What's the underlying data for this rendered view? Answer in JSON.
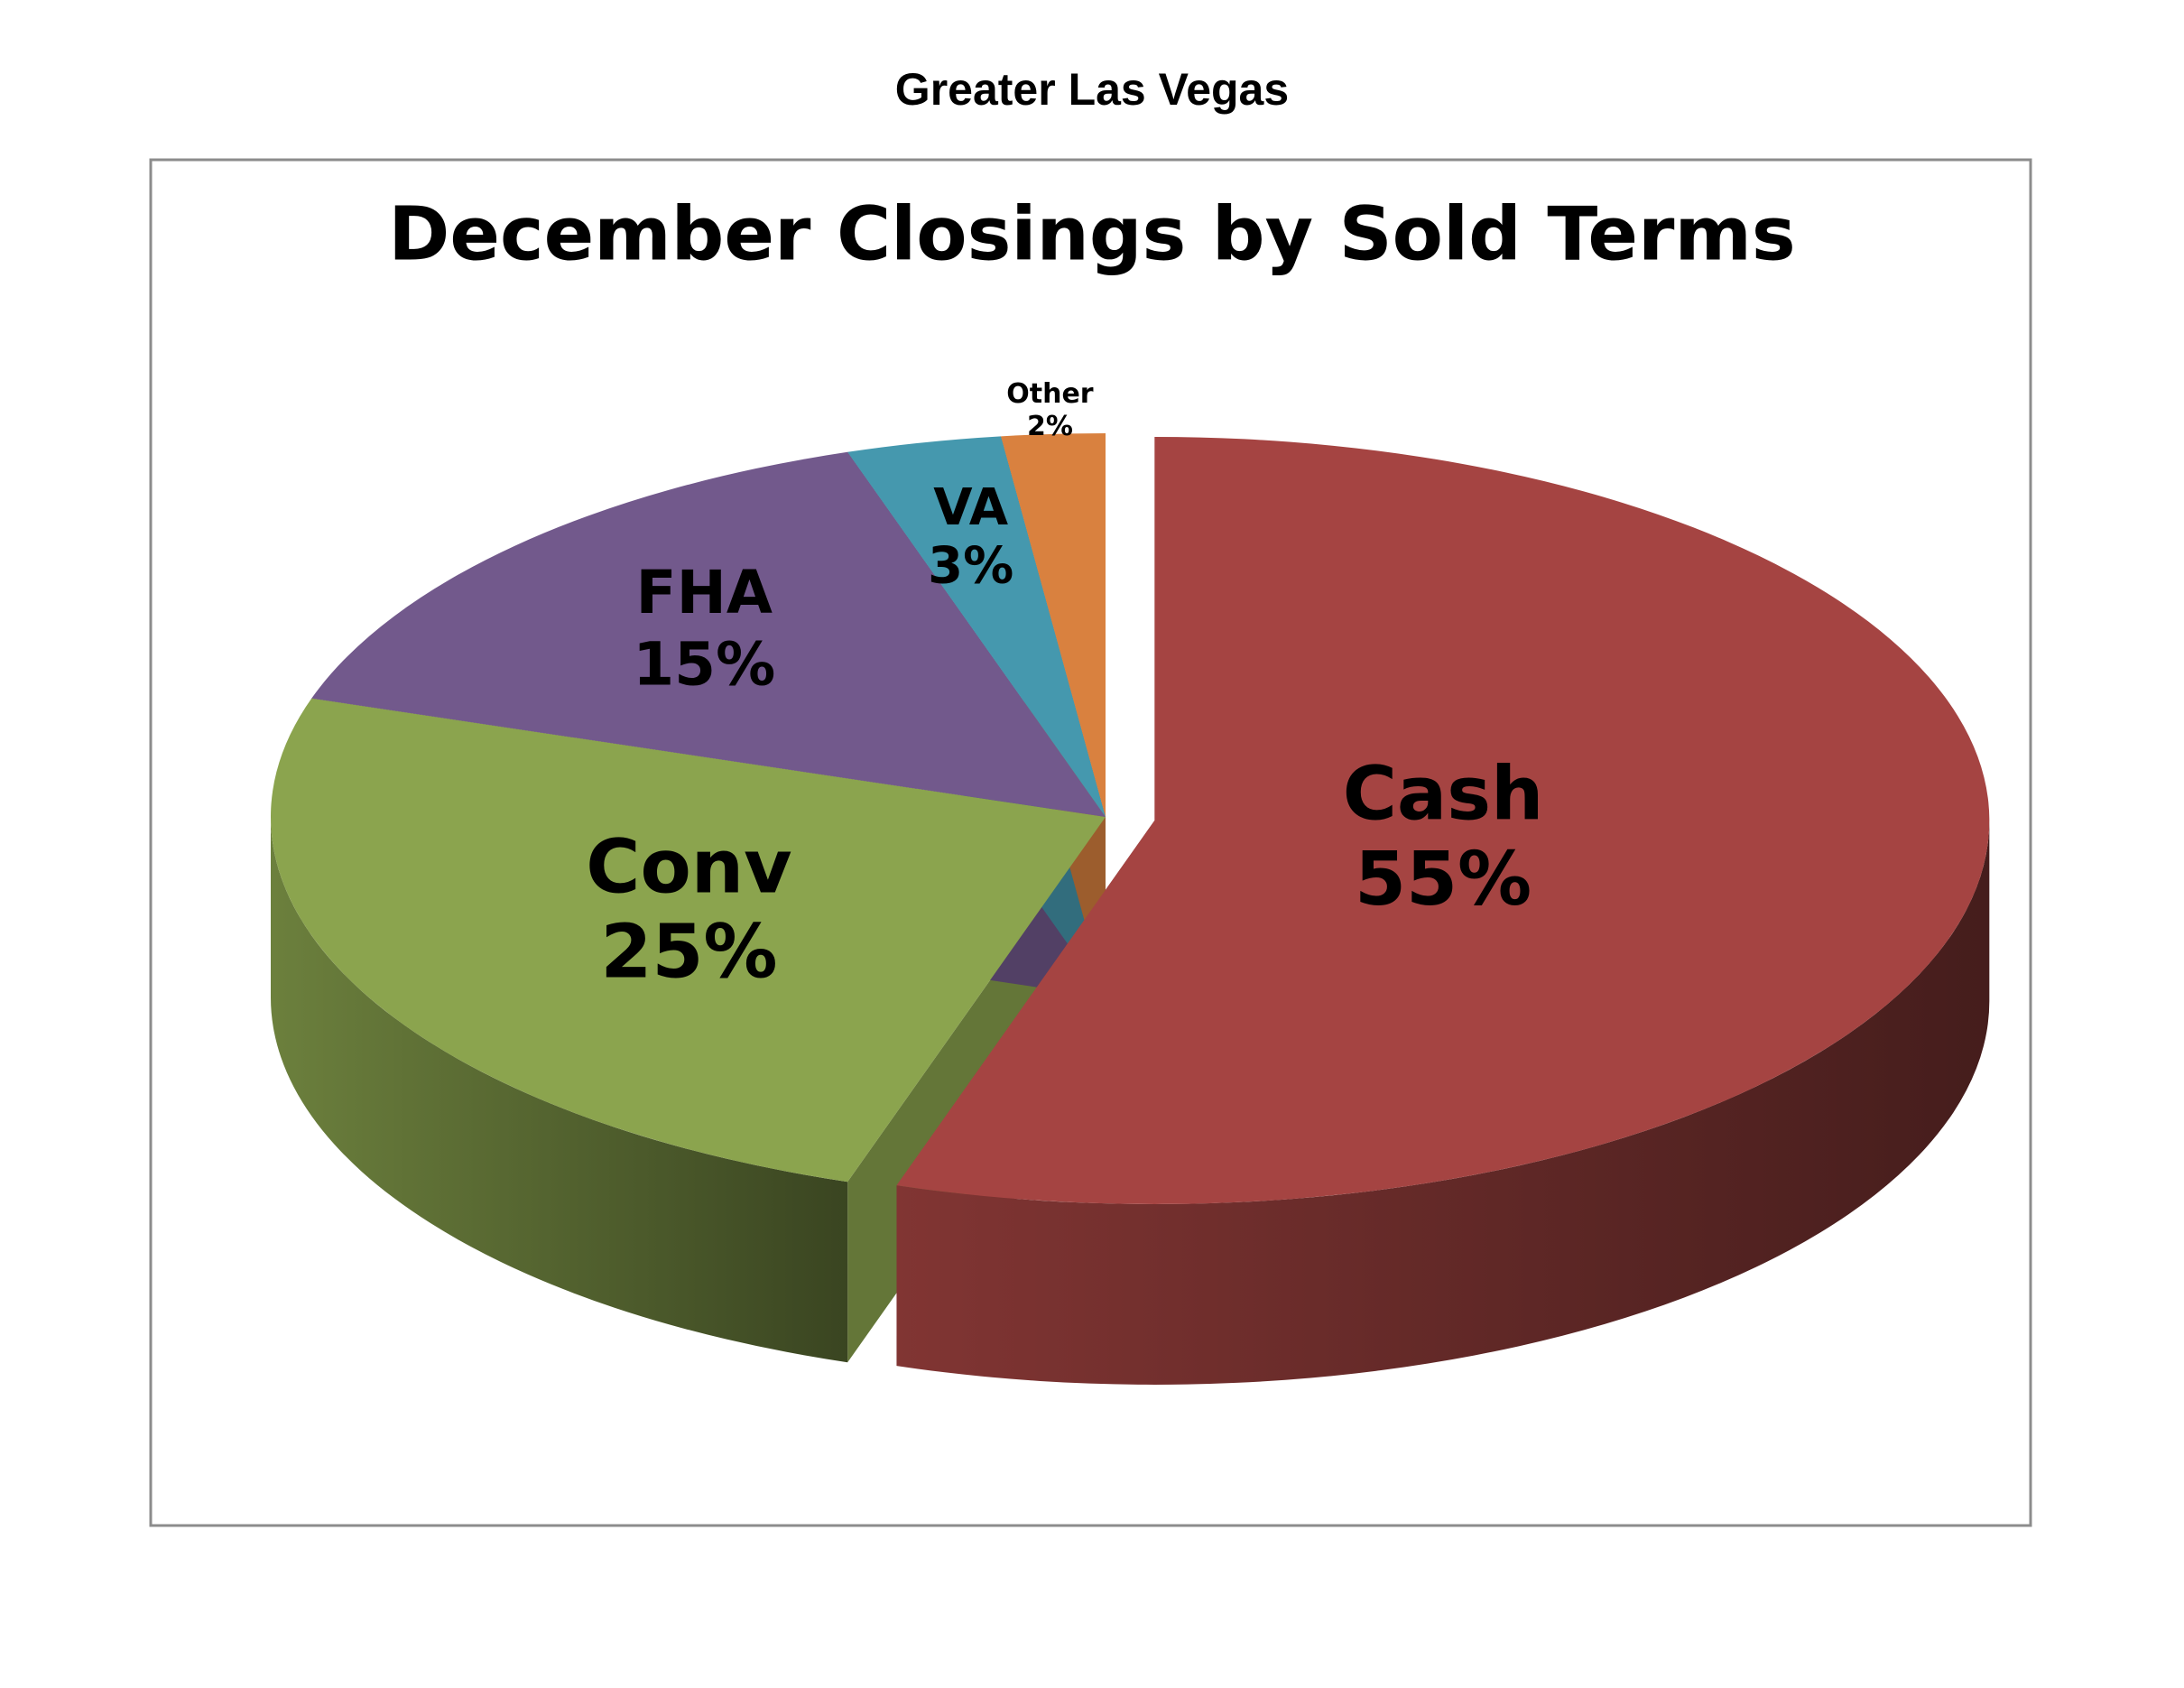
{
  "chart_data": {
    "type": "pie",
    "subtitle": "Greater Las Vegas",
    "title": "December Closings by Sold Terms",
    "categories": [
      "Cash",
      "Conv",
      "FHA",
      "VA",
      "Other"
    ],
    "values": [
      55,
      25,
      15,
      3,
      2
    ],
    "value_labels": [
      "55%",
      "25%",
      "15%",
      "3%",
      "2%"
    ],
    "colors": [
      "#a54442",
      "#8ba44e",
      "#72598c",
      "#4598ae",
      "#d9813f"
    ]
  }
}
